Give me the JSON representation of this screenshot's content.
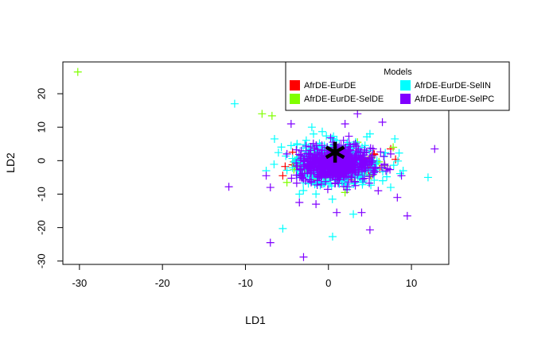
{
  "chart_data": {
    "type": "scatter",
    "title": "",
    "xlabel": "LD1",
    "ylabel": "LD2",
    "xlim": [
      -32,
      14.5
    ],
    "ylim": [
      -31,
      29.5
    ],
    "x_ticks": [
      -30,
      -20,
      -10,
      0,
      10
    ],
    "y_ticks": [
      -30,
      -20,
      -10,
      0,
      10,
      20
    ],
    "grid": false,
    "legend": {
      "title": "Models",
      "placement": "top-right",
      "entries": [
        {
          "name": "AfrDE-EurDE",
          "color": "#FF0000"
        },
        {
          "name": "AfrDE-EurDE-SelIN",
          "color": "#00FFFF"
        },
        {
          "name": "AfrDE-EurDE-SelDE",
          "color": "#80FF00"
        },
        {
          "name": "AfrDE-EurDE-SelPC",
          "color": "#8000FF"
        }
      ]
    },
    "marker": "+",
    "series": [
      {
        "name": "AfrDE-EurDE",
        "color": "#FF0000",
        "cloud": {
          "center": [
            1.0,
            -1.0
          ],
          "spread": [
            2.2,
            1.8
          ],
          "count": 200
        },
        "points": [
          [
            7.5,
            3.5
          ],
          [
            -5.5,
            -4.5
          ],
          [
            5.5,
            -3.0
          ],
          [
            6.2,
            -2.5
          ]
        ]
      },
      {
        "name": "AfrDE-EurDE-SelIN",
        "color": "#00FFFF",
        "cloud": {
          "center": [
            1.0,
            -1.0
          ],
          "spread": [
            2.6,
            3.2
          ],
          "count": 500
        },
        "points": [
          [
            -11.3,
            17.0
          ],
          [
            -5.5,
            -20.3
          ],
          [
            0.5,
            -22.7
          ],
          [
            12.0,
            -5.0
          ],
          [
            -6.5,
            6.5
          ],
          [
            8.0,
            6.5
          ],
          [
            7.5,
            -8.0
          ],
          [
            -3.5,
            -10.0
          ],
          [
            5.0,
            8.0
          ],
          [
            -2.0,
            10.0
          ],
          [
            3.0,
            -16.0
          ],
          [
            -7.5,
            -3.0
          ],
          [
            9.0,
            -3.0
          ],
          [
            -4.5,
            4.5
          ]
        ]
      },
      {
        "name": "AfrDE-EurDE-SelDE",
        "color": "#80FF00",
        "cloud": {
          "center": [
            1.0,
            -1.0
          ],
          "spread": [
            2.0,
            2.0
          ],
          "count": 150
        },
        "points": [
          [
            -30.2,
            26.5
          ],
          [
            -8.0,
            14.0
          ],
          [
            -6.8,
            13.4
          ],
          [
            7.8,
            4.0
          ],
          [
            2.0,
            -9.5
          ],
          [
            -5.0,
            -6.5
          ],
          [
            6.8,
            -1.5
          ],
          [
            3.5,
            5.5
          ]
        ]
      },
      {
        "name": "AfrDE-EurDE-SelPC",
        "color": "#8000FF",
        "cloud": {
          "center": [
            1.0,
            -1.0
          ],
          "spread": [
            2.2,
            2.5
          ],
          "count": 650
        },
        "points": [
          [
            -12.0,
            -7.8
          ],
          [
            -7.0,
            -24.5
          ],
          [
            -3.0,
            -28.8
          ],
          [
            9.5,
            -16.5
          ],
          [
            12.8,
            3.5
          ],
          [
            5.0,
            -20.7
          ],
          [
            8.3,
            -11.0
          ],
          [
            -4.5,
            11.0
          ],
          [
            6.5,
            11.5
          ],
          [
            3.5,
            14.0
          ],
          [
            -3.5,
            -12.5
          ],
          [
            1.0,
            -15.5
          ],
          [
            4.0,
            -15.5
          ],
          [
            -7.5,
            -4.5
          ],
          [
            7.5,
            2.0
          ],
          [
            -5.0,
            2.0
          ],
          [
            2.0,
            11.0
          ],
          [
            -1.5,
            -13.0
          ],
          [
            6.0,
            -9.0
          ],
          [
            8.8,
            -4.5
          ]
        ]
      }
    ],
    "annotations": [
      {
        "marker": "*",
        "x": 0.8,
        "y": 2.5,
        "color": "#000000"
      }
    ]
  }
}
